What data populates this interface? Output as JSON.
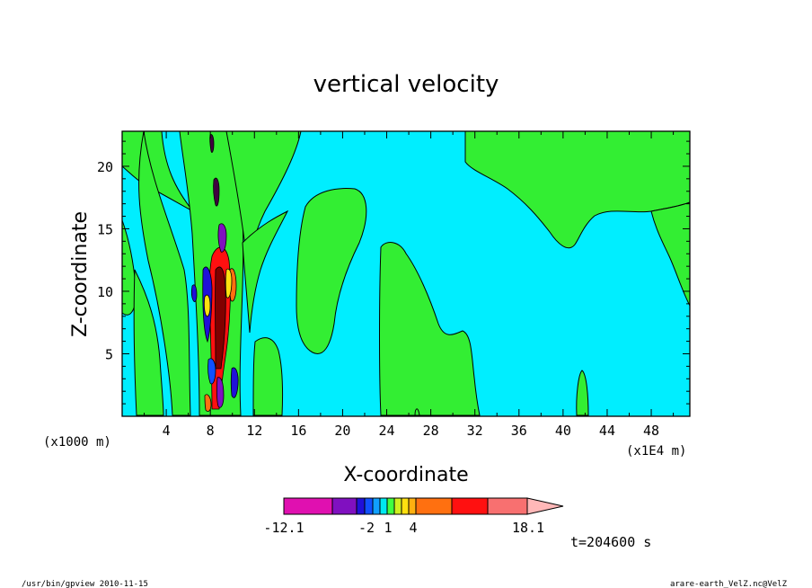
{
  "chart_data": {
    "type": "heatmap",
    "subtype": "filled-contour",
    "title": "vertical velocity",
    "xlabel": "X-coordinate",
    "ylabel": "Z-coordinate",
    "x_unit_left": "(x1000 m)",
    "x_unit_right": "(x1E4 m)",
    "xlim": [
      0,
      51.5
    ],
    "ylim": [
      0,
      22.8
    ],
    "x_ticks": [
      "4",
      "8",
      "12",
      "16",
      "20",
      "24",
      "28",
      "32",
      "36",
      "40",
      "44",
      "48"
    ],
    "y_ticks": [
      "5",
      "10",
      "15",
      "20"
    ],
    "colorbar": {
      "min_label": "-12.1",
      "labels": [
        "-12.1",
        "-2",
        "1",
        "4",
        "18.1"
      ],
      "bins": [
        {
          "color": "#e010b0"
        },
        {
          "color": "#8010c0"
        },
        {
          "color": "#2010d8"
        },
        {
          "color": "#1050ff"
        },
        {
          "color": "#10a0ff"
        },
        {
          "color": "#00e8f0"
        },
        {
          "color": "#40ff40"
        },
        {
          "color": "#d0f020"
        },
        {
          "color": "#ffe010"
        },
        {
          "color": "#ffb010"
        },
        {
          "color": "#ff7010"
        },
        {
          "color": "#ff1010"
        },
        {
          "color": "#f87070"
        },
        {
          "color": "#ffb8b8"
        }
      ]
    },
    "colors": {
      "background_negative": "#00eeff",
      "positive_weak": "#33ee33"
    }
  },
  "footer": {
    "time_label": "t=204600 s",
    "left_note": "/usr/bin/gpview   2010-11-15",
    "right_note": "arare-earth_VelZ.nc@VelZ"
  }
}
